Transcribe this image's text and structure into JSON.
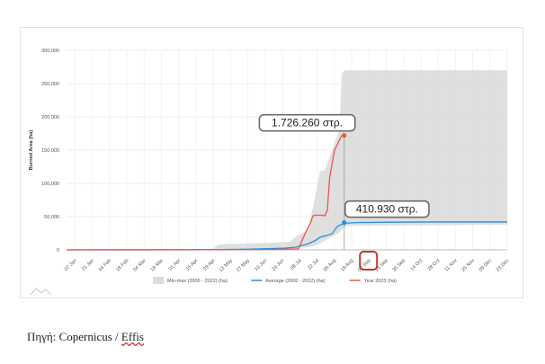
{
  "chart_data": {
    "type": "area",
    "ylabel": "Burned Area (ha)",
    "ylim": [
      0,
      300000
    ],
    "yticks": [
      0,
      50000,
      100000,
      150000,
      200000,
      250000,
      300000
    ],
    "ytick_labels": [
      "0",
      "50,000",
      "100,000",
      "150,000",
      "200,000",
      "250,000",
      "300,000"
    ],
    "xlim_days": [
      0,
      365
    ],
    "xtick_labels": [
      "07 Jan",
      "21 Jan",
      "04 Feb",
      "18 Feb",
      "04 Mar",
      "18 Mar",
      "01 Apr",
      "15 Apr",
      "29 Apr",
      "13 May",
      "27 May",
      "10 Jun",
      "24 Jun",
      "08 Jul",
      "22 Jul",
      "05 Aug",
      "19 Aug",
      "02 Sep",
      "16 Sep",
      "30 Sep",
      "14 Oct",
      "28 Oct",
      "11 Nov",
      "25 Nov",
      "09 Dec",
      "23 Dec"
    ],
    "series": [
      {
        "name": "Min-max (2006 - 2022) (ha)",
        "kind": "band",
        "color": "#dcdcdc",
        "x_days": [
          0,
          120,
          126,
          140,
          160,
          185,
          190,
          200,
          206,
          210,
          214,
          218,
          222,
          226,
          228,
          230,
          232,
          365
        ],
        "upper": [
          0,
          0,
          8000,
          9000,
          10000,
          12000,
          20000,
          30000,
          80000,
          118000,
          120000,
          140000,
          160000,
          180000,
          265000,
          270000,
          270000,
          270000
        ],
        "lower": [
          0,
          0,
          0,
          500,
          1000,
          1500,
          2500,
          4000,
          6000,
          10000,
          14000,
          18000,
          22000,
          26000,
          30000,
          34000,
          36000,
          38000
        ]
      },
      {
        "name": "Average (2006 - 2022) (ha)",
        "kind": "line",
        "color": "#2a8fd6",
        "x_days": [
          0,
          120,
          150,
          180,
          190,
          200,
          206,
          210,
          214,
          220,
          224,
          230,
          240,
          260,
          300,
          365
        ],
        "values": [
          0,
          200,
          1000,
          2500,
          4000,
          9000,
          14000,
          19000,
          21000,
          24000,
          35000,
          40000,
          41000,
          41500,
          42000,
          42000
        ]
      },
      {
        "name": "Year 2023 (ha)",
        "kind": "line",
        "color": "#e8584a",
        "x_days": [
          0,
          170,
          192,
          196,
          200,
          202,
          204,
          206,
          208,
          212,
          214,
          216,
          218,
          222,
          226,
          228,
          230
        ],
        "values": [
          0,
          500,
          1500,
          18000,
          34000,
          40000,
          51000,
          52000,
          52000,
          52000,
          51000,
          60000,
          110000,
          150000,
          165000,
          172000,
          172000
        ]
      }
    ],
    "annotations": [
      {
        "text": "1.726.260 στρ.",
        "x_day": 230,
        "y": 172000,
        "dot_color": "#e8584a"
      },
      {
        "text": "410.930 στρ.",
        "x_day": 230,
        "y": 41000,
        "dot_color": "#2a8fd6"
      }
    ],
    "highlight_tick": "02 Sep",
    "highlight_color": "#c0392b",
    "legend_position": "bottom",
    "grid": true
  },
  "caption": {
    "prefix": "Πηγή: Copernicus / ",
    "squiggle": "Effis"
  }
}
